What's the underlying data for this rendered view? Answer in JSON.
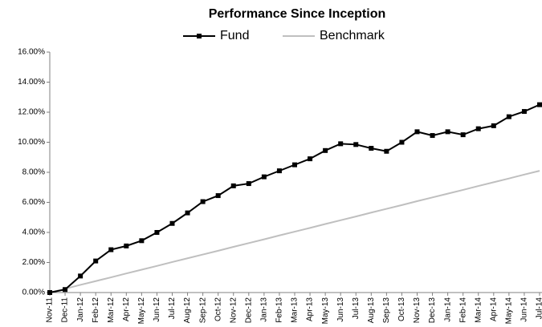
{
  "chart_data": {
    "type": "line",
    "title": "Performance Since Inception",
    "categories": [
      "Nov-11",
      "Dec-11",
      "Jan-12",
      "Feb-12",
      "Mar-12",
      "Apr-12",
      "May-12",
      "Jun-12",
      "Jul-12",
      "Aug-12",
      "Sep-12",
      "Oct-12",
      "Nov-12",
      "Dec-12",
      "Jan-13",
      "Feb-13",
      "Mar-13",
      "Apr-13",
      "May-13",
      "Jun-13",
      "Jul-13",
      "Aug-13",
      "Sep-13",
      "Oct-13",
      "Nov-13",
      "Dec-13",
      "Jan-14",
      "Feb-14",
      "Mar-14",
      "Apr-14",
      "May-14",
      "Jun-14",
      "Jul-14"
    ],
    "series": [
      {
        "name": "Fund",
        "color": "#000000",
        "values": [
          0,
          0.2,
          1.1,
          2.1,
          2.85,
          3.1,
          3.45,
          4.0,
          4.6,
          5.3,
          6.05,
          6.45,
          7.1,
          7.25,
          7.7,
          8.1,
          8.5,
          8.9,
          9.45,
          9.9,
          9.85,
          9.6,
          9.4,
          10.0,
          10.7,
          10.45,
          10.7,
          10.5,
          10.9,
          11.1,
          11.7,
          12.05,
          12.5
        ]
      },
      {
        "name": "Benchmark",
        "color": "#bfbfbf",
        "values": [
          0,
          0.25,
          0.51,
          0.76,
          1.01,
          1.27,
          1.52,
          1.77,
          2.03,
          2.28,
          2.53,
          2.78,
          3.04,
          3.29,
          3.54,
          3.8,
          4.05,
          4.3,
          4.56,
          4.81,
          5.06,
          5.32,
          5.57,
          5.82,
          6.08,
          6.33,
          6.58,
          6.83,
          7.09,
          7.34,
          7.59,
          7.85,
          8.1
        ]
      }
    ],
    "ylim": [
      0,
      16
    ],
    "yticks": [
      {
        "value": 0,
        "label": "0.00%"
      },
      {
        "value": 2,
        "label": "2.00%"
      },
      {
        "value": 4,
        "label": "4.00%"
      },
      {
        "value": 6,
        "label": "6.00%"
      },
      {
        "value": 8,
        "label": "8.00%"
      },
      {
        "value": 10,
        "label": "10.00%"
      },
      {
        "value": 12,
        "label": "12.00%"
      },
      {
        "value": 14,
        "label": "14.00%"
      },
      {
        "value": 16,
        "label": "16.00%"
      }
    ],
    "grid": false,
    "legend": "top"
  }
}
